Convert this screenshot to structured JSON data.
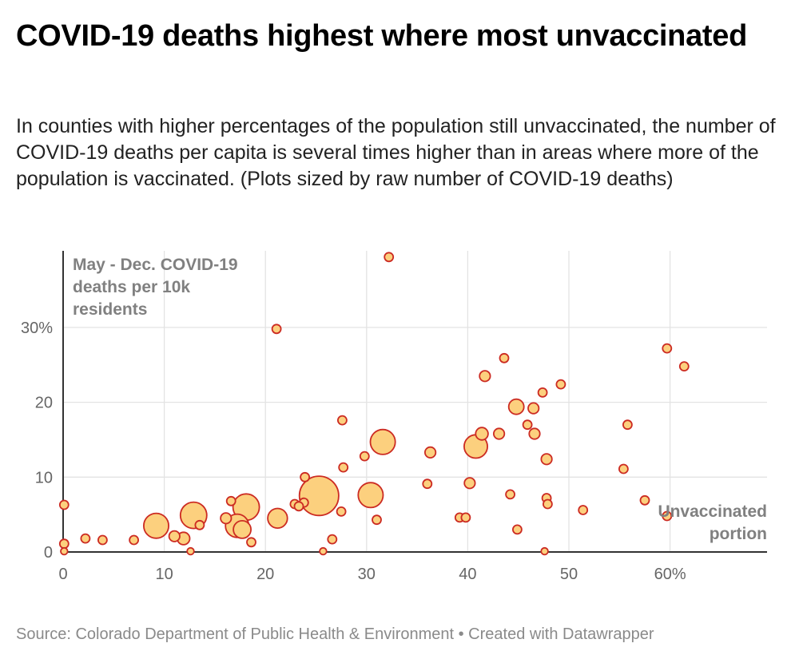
{
  "chart_data": {
    "type": "scatter",
    "title": "COVID-19 deaths highest where most unvaccinated",
    "subtitle": "In counties with higher percentages of the population still unvaccinated, the number of COVID-19 deaths per capita is several times higher than in areas where more of the population is vaccinated. (Plots sized by raw number of COVID-19 deaths)",
    "ylabel_lines": [
      "May - Dec. COVID-19",
      "deaths per 10k",
      "residents"
    ],
    "xlabel_lines": [
      "Unvaccinated",
      "portion"
    ],
    "source": "Source: Colorado Department of Public Health & Environment • Created with Datawrapper",
    "xlim": [
      0,
      70
    ],
    "ylim": [
      0,
      40
    ],
    "x_ticks": [
      {
        "value": 0,
        "label": "0"
      },
      {
        "value": 10,
        "label": "10"
      },
      {
        "value": 20,
        "label": "20"
      },
      {
        "value": 30,
        "label": "30"
      },
      {
        "value": 40,
        "label": "40"
      },
      {
        "value": 50,
        "label": "50"
      },
      {
        "value": 60,
        "label": "60%"
      }
    ],
    "y_ticks": [
      {
        "value": 0,
        "label": "0"
      },
      {
        "value": 10,
        "label": "10"
      },
      {
        "value": 20,
        "label": "20"
      },
      {
        "value": 30,
        "label": "30%"
      }
    ],
    "grid": true,
    "colors": {
      "fill": "#fcd07e",
      "stroke": "#cc2b22",
      "grid": "#e3e3e3",
      "axis": "#333333"
    },
    "points": [
      {
        "x": 32.2,
        "y": 39.4,
        "size": 1
      },
      {
        "x": 21.1,
        "y": 29.8,
        "size": 1
      },
      {
        "x": 59.7,
        "y": 27.2,
        "size": 1
      },
      {
        "x": 43.6,
        "y": 25.9,
        "size": 1
      },
      {
        "x": 61.4,
        "y": 24.8,
        "size": 1
      },
      {
        "x": 41.7,
        "y": 23.5,
        "size": 1.5
      },
      {
        "x": 49.2,
        "y": 22.4,
        "size": 1
      },
      {
        "x": 47.4,
        "y": 21.3,
        "size": 1
      },
      {
        "x": 44.8,
        "y": 19.4,
        "size": 3
      },
      {
        "x": 46.5,
        "y": 19.2,
        "size": 1.5
      },
      {
        "x": 27.6,
        "y": 17.6,
        "size": 1
      },
      {
        "x": 45.9,
        "y": 17.0,
        "size": 1
      },
      {
        "x": 55.8,
        "y": 17.0,
        "size": 1
      },
      {
        "x": 41.4,
        "y": 15.8,
        "size": 2
      },
      {
        "x": 43.1,
        "y": 15.8,
        "size": 1.5
      },
      {
        "x": 46.6,
        "y": 15.8,
        "size": 1.5
      },
      {
        "x": 31.6,
        "y": 14.7,
        "size": 8
      },
      {
        "x": 40.8,
        "y": 14.1,
        "size": 7
      },
      {
        "x": 36.3,
        "y": 13.3,
        "size": 1.5
      },
      {
        "x": 29.8,
        "y": 12.8,
        "size": 1
      },
      {
        "x": 47.8,
        "y": 12.4,
        "size": 1.5
      },
      {
        "x": 27.7,
        "y": 11.3,
        "size": 1
      },
      {
        "x": 55.4,
        "y": 11.1,
        "size": 1
      },
      {
        "x": 23.9,
        "y": 10.0,
        "size": 1
      },
      {
        "x": 36.0,
        "y": 9.1,
        "size": 1
      },
      {
        "x": 40.2,
        "y": 9.2,
        "size": 1.5
      },
      {
        "x": 44.2,
        "y": 7.7,
        "size": 1
      },
      {
        "x": 25.3,
        "y": 7.5,
        "size": 20
      },
      {
        "x": 30.4,
        "y": 7.6,
        "size": 8
      },
      {
        "x": 47.8,
        "y": 7.2,
        "size": 1
      },
      {
        "x": 57.5,
        "y": 6.9,
        "size": 1
      },
      {
        "x": 16.6,
        "y": 6.8,
        "size": 1
      },
      {
        "x": 23.8,
        "y": 6.6,
        "size": 1
      },
      {
        "x": 22.9,
        "y": 6.4,
        "size": 1
      },
      {
        "x": 23.3,
        "y": 6.1,
        "size": 1
      },
      {
        "x": 47.9,
        "y": 6.4,
        "size": 1
      },
      {
        "x": 0.1,
        "y": 6.3,
        "size": 1
      },
      {
        "x": 18.1,
        "y": 6.0,
        "size": 9
      },
      {
        "x": 51.4,
        "y": 5.6,
        "size": 1
      },
      {
        "x": 27.5,
        "y": 5.4,
        "size": 1
      },
      {
        "x": 12.9,
        "y": 4.9,
        "size": 9
      },
      {
        "x": 59.7,
        "y": 4.8,
        "size": 1
      },
      {
        "x": 16.1,
        "y": 4.5,
        "size": 1.5
      },
      {
        "x": 21.2,
        "y": 4.5,
        "size": 5
      },
      {
        "x": 39.2,
        "y": 4.6,
        "size": 1
      },
      {
        "x": 39.8,
        "y": 4.6,
        "size": 1
      },
      {
        "x": 31.0,
        "y": 4.3,
        "size": 1
      },
      {
        "x": 13.5,
        "y": 3.6,
        "size": 1
      },
      {
        "x": 9.2,
        "y": 3.5,
        "size": 8
      },
      {
        "x": 17.2,
        "y": 3.5,
        "size": 7
      },
      {
        "x": 17.7,
        "y": 3.0,
        "size": 4
      },
      {
        "x": 44.9,
        "y": 3.0,
        "size": 1
      },
      {
        "x": 11.0,
        "y": 2.1,
        "size": 1.5
      },
      {
        "x": 11.9,
        "y": 1.8,
        "size": 2
      },
      {
        "x": 2.2,
        "y": 1.8,
        "size": 1
      },
      {
        "x": 26.6,
        "y": 1.7,
        "size": 1
      },
      {
        "x": 3.9,
        "y": 1.6,
        "size": 1
      },
      {
        "x": 7.0,
        "y": 1.6,
        "size": 1
      },
      {
        "x": 18.6,
        "y": 1.3,
        "size": 1
      },
      {
        "x": 0.1,
        "y": 1.1,
        "size": 1
      },
      {
        "x": 0.1,
        "y": 0.1,
        "size": 0.6
      },
      {
        "x": 12.6,
        "y": 0.1,
        "size": 0.6
      },
      {
        "x": 25.7,
        "y": 0.1,
        "size": 0.6
      },
      {
        "x": 47.6,
        "y": 0.1,
        "size": 0.6
      }
    ]
  }
}
